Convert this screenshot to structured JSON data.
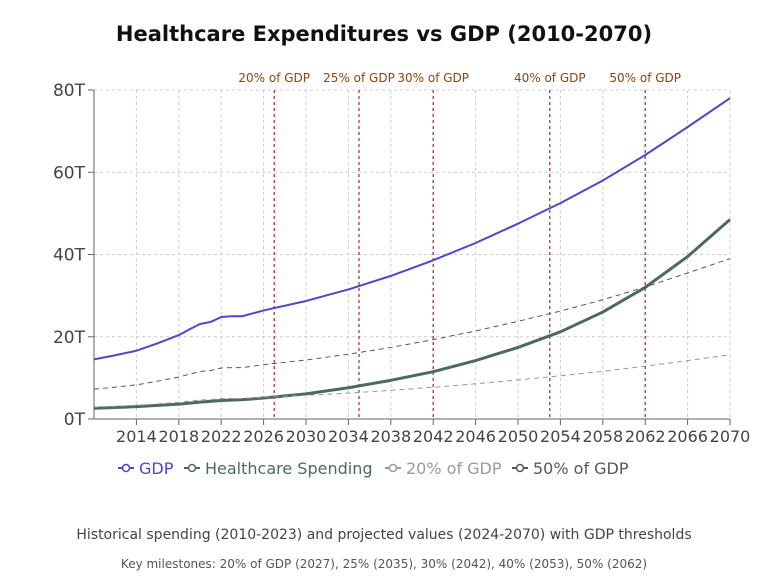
{
  "chart_data": {
    "type": "line",
    "title": "Healthcare Expenditures vs GDP (2010-2070)",
    "xlim": [
      2010,
      2070
    ],
    "ylim": [
      0,
      80
    ],
    "x_ticks": [
      2014,
      2018,
      2022,
      2026,
      2030,
      2034,
      2038,
      2042,
      2046,
      2050,
      2054,
      2058,
      2062,
      2066,
      2070
    ],
    "y_ticks": [
      0,
      20,
      40,
      60,
      80
    ],
    "y_tick_labels": [
      "0T",
      "20T",
      "40T",
      "60T",
      "80T"
    ],
    "grid": true,
    "legend_position": "bottom",
    "series": [
      {
        "name": "GDP",
        "color": "#4c46d2",
        "dashed": false,
        "x": [
          2010,
          2012,
          2014,
          2016,
          2018,
          2019,
          2020,
          2021,
          2022,
          2023,
          2024,
          2026,
          2030,
          2034,
          2038,
          2042,
          2046,
          2050,
          2054,
          2058,
          2062,
          2066,
          2070
        ],
        "y": [
          14.5,
          15.5,
          16.6,
          18.4,
          20.4,
          21.8,
          23.1,
          23.6,
          24.8,
          25.0,
          25.0,
          26.4,
          28.7,
          31.5,
          34.8,
          38.6,
          42.8,
          47.5,
          52.5,
          58.0,
          64.2,
          71.0,
          78.0
        ]
      },
      {
        "name": "Healthcare Spending",
        "color": "#4a6b5b",
        "dashed": false,
        "x": [
          2010,
          2012,
          2014,
          2016,
          2018,
          2020,
          2022,
          2024,
          2026,
          2030,
          2034,
          2038,
          2042,
          2046,
          2050,
          2054,
          2058,
          2062,
          2066,
          2070
        ],
        "y": [
          2.6,
          2.8,
          3.0,
          3.3,
          3.6,
          4.1,
          4.5,
          4.7,
          5.1,
          6.1,
          7.6,
          9.4,
          11.5,
          14.2,
          17.4,
          21.2,
          26.0,
          32.0,
          39.5,
          48.5
        ]
      },
      {
        "name": "20% of GDP",
        "color": "#999999",
        "dashed": true,
        "x": [
          2010,
          2012,
          2014,
          2016,
          2018,
          2019,
          2020,
          2021,
          2022,
          2023,
          2024,
          2026,
          2030,
          2034,
          2038,
          2042,
          2046,
          2050,
          2054,
          2058,
          2062,
          2066,
          2070
        ],
        "y": [
          2.9,
          3.1,
          3.32,
          3.68,
          4.08,
          4.36,
          4.62,
          4.72,
          4.96,
          5.0,
          5.0,
          5.28,
          5.74,
          6.3,
          6.96,
          7.72,
          8.56,
          9.5,
          10.5,
          11.6,
          12.84,
          14.2,
          15.6
        ]
      },
      {
        "name": "50% of GDP",
        "color": "#555566",
        "dashed": true,
        "x": [
          2010,
          2012,
          2014,
          2016,
          2018,
          2019,
          2020,
          2021,
          2022,
          2023,
          2024,
          2026,
          2030,
          2034,
          2038,
          2042,
          2046,
          2050,
          2054,
          2058,
          2062,
          2066,
          2070
        ],
        "y": [
          7.25,
          7.75,
          8.3,
          9.2,
          10.2,
          10.9,
          11.55,
          11.8,
          12.4,
          12.5,
          12.5,
          13.2,
          14.35,
          15.75,
          17.4,
          19.3,
          21.4,
          23.75,
          26.25,
          29.0,
          32.1,
          35.5,
          39.0
        ]
      }
    ],
    "reference_lines": [
      {
        "label": "20% of GDP",
        "x": 2027
      },
      {
        "label": "25% of GDP",
        "x": 2035
      },
      {
        "label": "30% of GDP",
        "x": 2042
      },
      {
        "label": "40% of GDP",
        "x": 2053
      },
      {
        "label": "50% of GDP",
        "x": 2062
      }
    ],
    "reference_line_color": "#a52a2a",
    "caption": "Historical spending (2010-2023) and projected values (2024-2070) with GDP thresholds",
    "milestones_text": "Key milestones: 20% of GDP (2027), 25% (2035), 30% (2042), 40% (2053), 50% (2062)"
  }
}
